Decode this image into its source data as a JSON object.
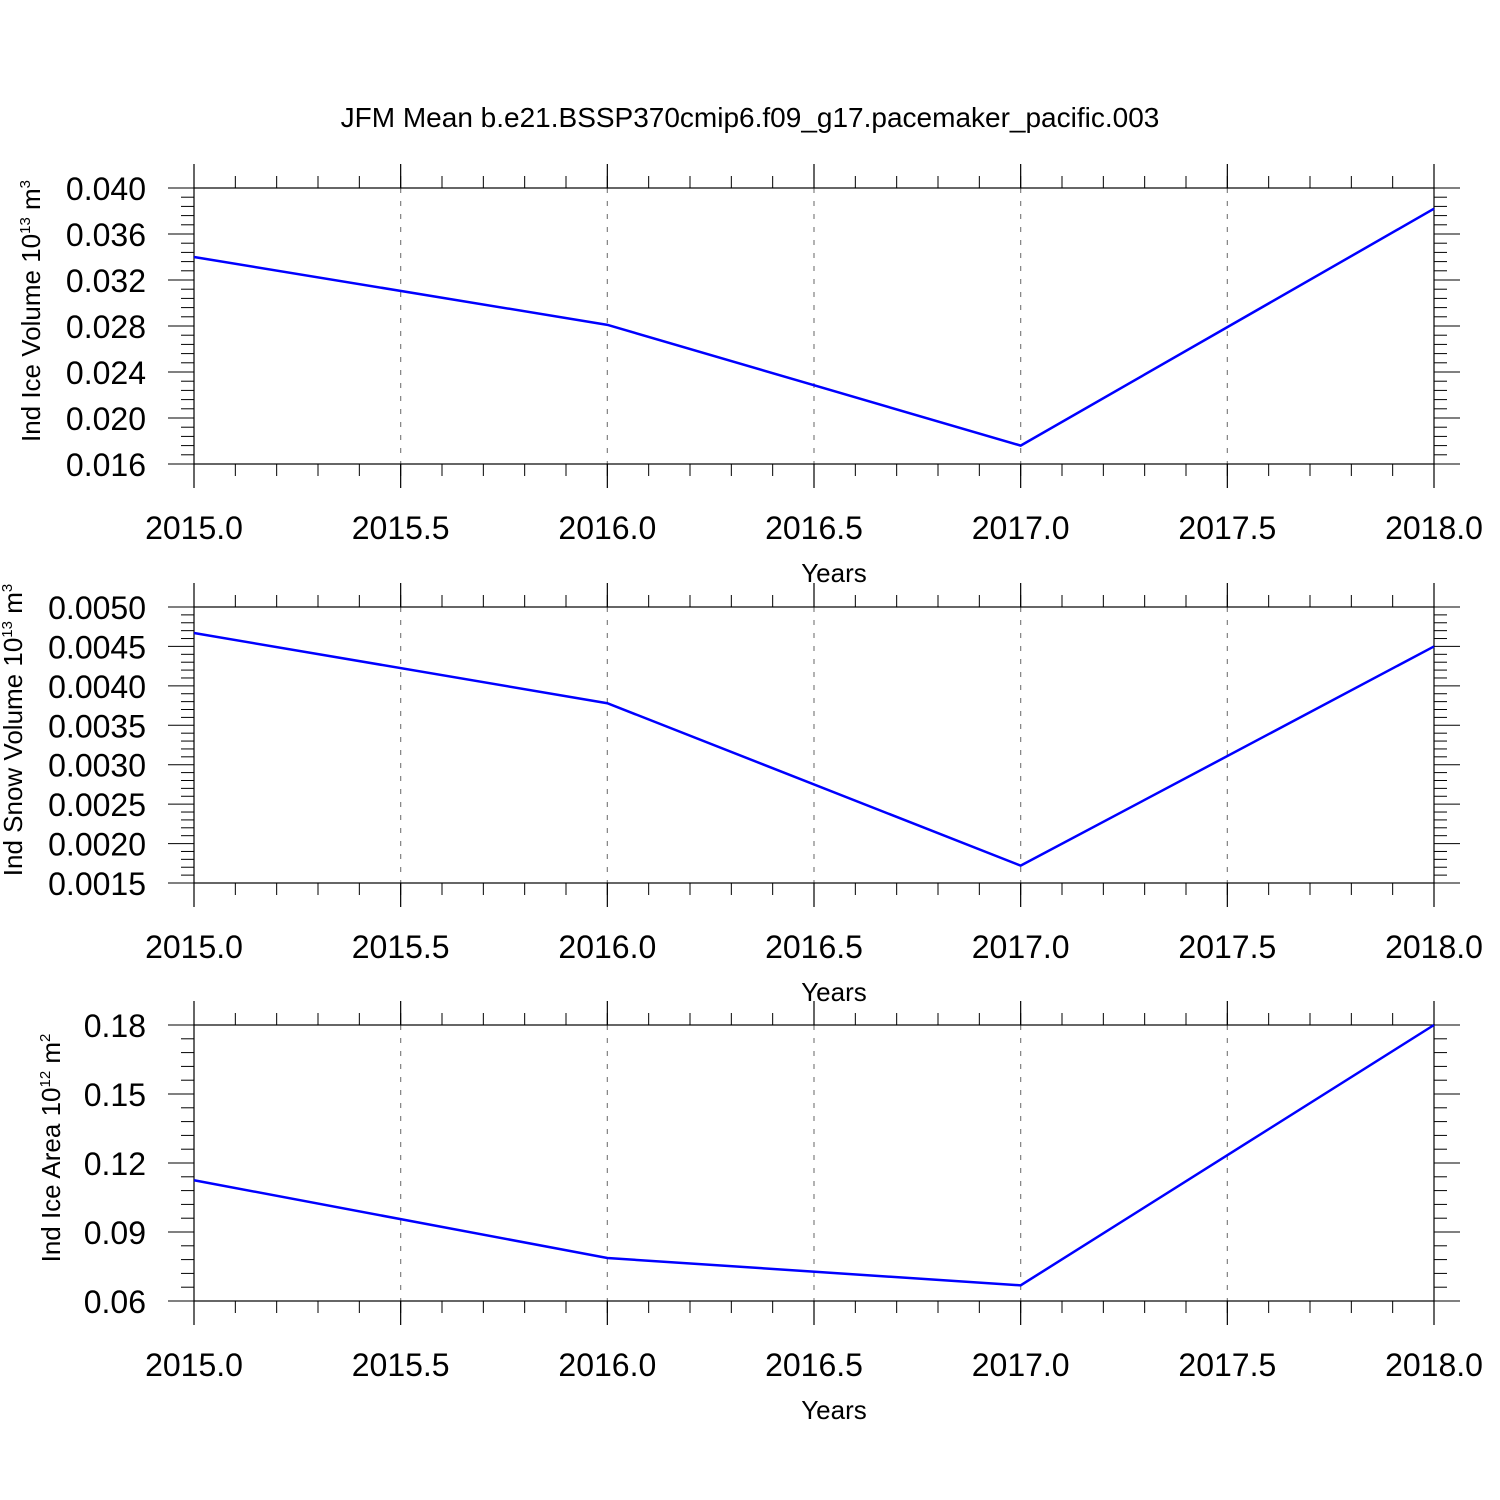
{
  "title": "JFM Mean b.e21.BSSP370cmip6.f09_g17.pacemaker_pacific.003",
  "colors": {
    "line": "#0000ff",
    "axis": "#000000",
    "grid": "#808080"
  },
  "chart_data": [
    {
      "type": "line",
      "xlabel": "Years",
      "ylabel": {
        "text": "Ind Ice Volume 10",
        "sup": "13",
        "unit": " m",
        "unit_sup": "3"
      },
      "x": [
        2015.0,
        2016.0,
        2017.0,
        2018.0
      ],
      "y": [
        0.034,
        0.0281,
        0.0176,
        0.0382
      ],
      "xlim": [
        2015.0,
        2018.0
      ],
      "ylim": [
        0.016,
        0.04
      ],
      "xticks": [
        2015.0,
        2015.5,
        2016.0,
        2016.5,
        2017.0,
        2017.5,
        2018.0
      ],
      "xtick_labels": [
        "2015.0",
        "2015.5",
        "2016.0",
        "2016.5",
        "2017.0",
        "2017.5",
        "2018.0"
      ],
      "yticks": [
        0.016,
        0.02,
        0.024,
        0.028,
        0.032,
        0.036,
        0.04
      ],
      "ytick_labels": [
        "0.016",
        "0.020",
        "0.024",
        "0.028",
        "0.032",
        "0.036",
        "0.040"
      ],
      "grid": "vertical dashed"
    },
    {
      "type": "line",
      "xlabel": "Years",
      "ylabel": {
        "text": "Ind Snow Volume 10",
        "sup": "13",
        "unit": " m",
        "unit_sup": "3"
      },
      "x": [
        2015.0,
        2016.0,
        2017.0,
        2018.0
      ],
      "y": [
        0.00467,
        0.00378,
        0.00172,
        0.0045
      ],
      "xlim": [
        2015.0,
        2018.0
      ],
      "ylim": [
        0.0015,
        0.005
      ],
      "xticks": [
        2015.0,
        2015.5,
        2016.0,
        2016.5,
        2017.0,
        2017.5,
        2018.0
      ],
      "xtick_labels": [
        "2015.0",
        "2015.5",
        "2016.0",
        "2016.5",
        "2017.0",
        "2017.5",
        "2018.0"
      ],
      "yticks": [
        0.0015,
        0.002,
        0.0025,
        0.003,
        0.0035,
        0.004,
        0.0045,
        0.005
      ],
      "ytick_labels": [
        "0.0015",
        "0.0020",
        "0.0025",
        "0.0030",
        "0.0035",
        "0.0040",
        "0.0045",
        "0.0050"
      ],
      "grid": "vertical dashed"
    },
    {
      "type": "line",
      "xlabel": "Years",
      "ylabel": {
        "text": "Ind Ice Area 10",
        "sup": "12",
        "unit": " m",
        "unit_sup": "2"
      },
      "x": [
        2015.0,
        2016.0,
        2017.0,
        2018.0
      ],
      "y": [
        0.1125,
        0.0787,
        0.0668,
        0.18
      ],
      "xlim": [
        2015.0,
        2018.0
      ],
      "ylim": [
        0.06,
        0.18
      ],
      "xticks": [
        2015.0,
        2015.5,
        2016.0,
        2016.5,
        2017.0,
        2017.5,
        2018.0
      ],
      "xtick_labels": [
        "2015.0",
        "2015.5",
        "2016.0",
        "2016.5",
        "2017.0",
        "2017.5",
        "2018.0"
      ],
      "yticks": [
        0.06,
        0.09,
        0.12,
        0.15,
        0.18
      ],
      "ytick_labels": [
        "0.06",
        "0.09",
        "0.12",
        "0.15",
        "0.18"
      ],
      "grid": "vertical dashed"
    }
  ]
}
